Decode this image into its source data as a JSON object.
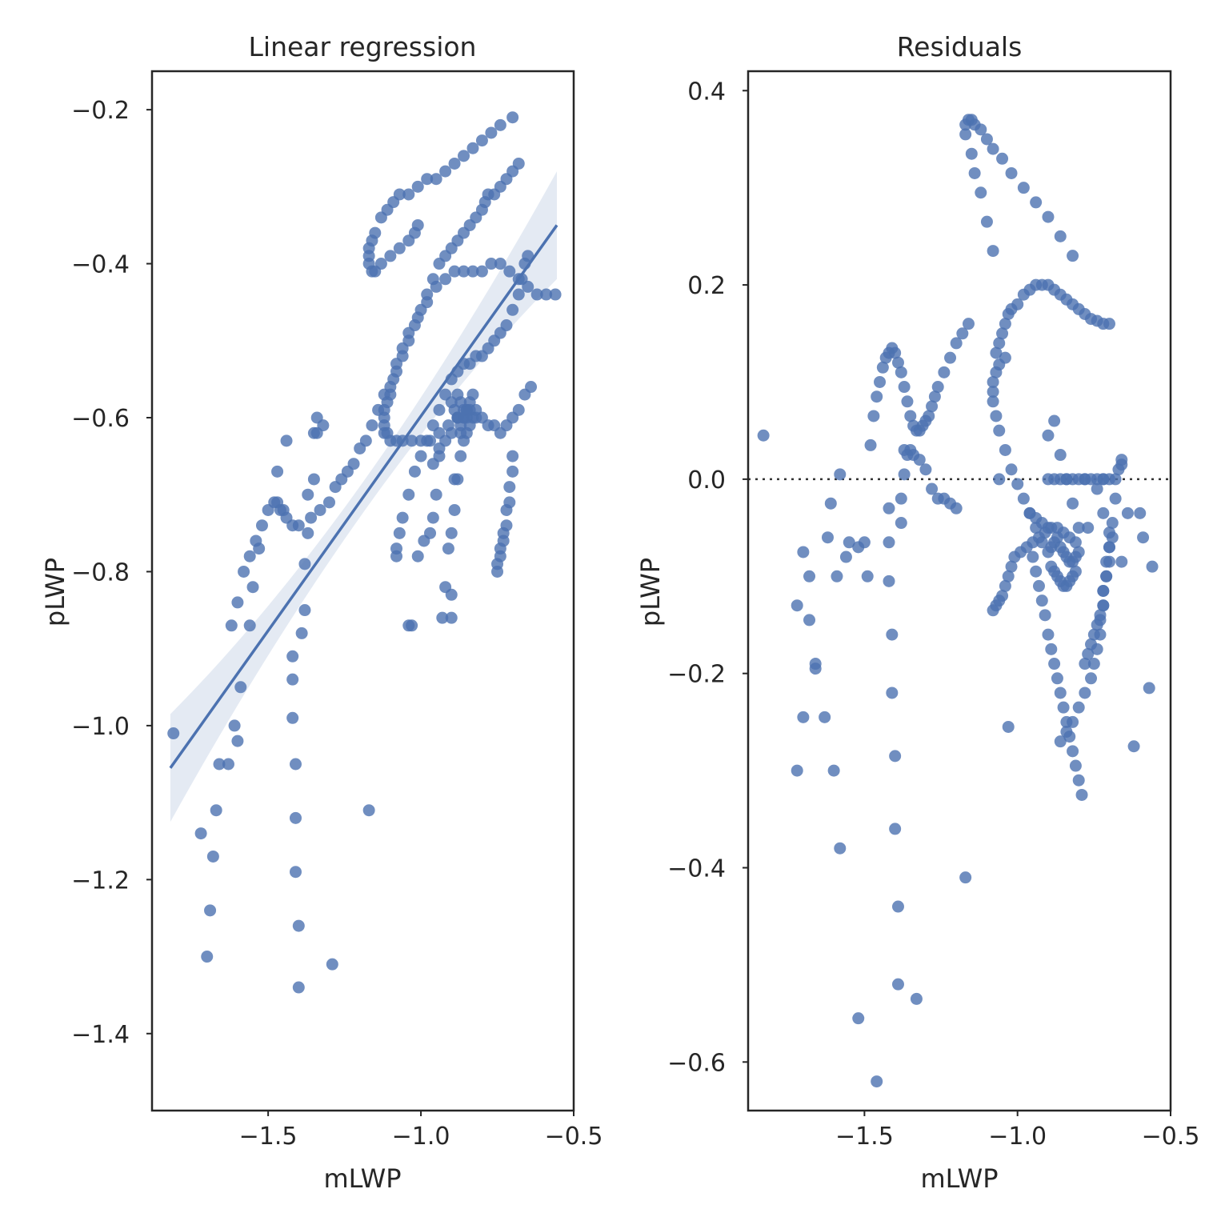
{
  "figure": {
    "left": {
      "title": "Linear regression",
      "xlabel": "mLWP",
      "ylabel": "pLWP"
    },
    "right": {
      "title": "Residuals",
      "xlabel": "mLWP",
      "ylabel": "pLWP"
    }
  },
  "colors": {
    "points": "#4c72b0",
    "fit_line": "#4c72b0",
    "zero_line": "#333333",
    "axes": "#262626"
  },
  "chart_data": [
    {
      "type": "scatter",
      "title": "Linear regression",
      "xlabel": "mLWP",
      "ylabel": "pLWP",
      "xlim": [
        -1.88,
        -0.5
      ],
      "ylim": [
        -1.5,
        -0.15
      ],
      "xticks": [
        -1.5,
        -1.0,
        -0.5
      ],
      "xtick_labels": [
        "−1.5",
        "−1.0",
        "−0.5"
      ],
      "yticks": [
        -1.4,
        -1.2,
        -1.0,
        -0.8,
        -0.6,
        -0.4,
        -0.2
      ],
      "ytick_labels": [
        "−1.4",
        "−1.2",
        "−1.0",
        "−0.8",
        "−0.6",
        "−0.4",
        "−0.2"
      ],
      "grid": false,
      "regression": {
        "x0": -1.82,
        "y0": -1.055,
        "x1": -0.555,
        "y1": -0.35,
        "ci_halfwidth_ends": 0.07,
        "ci_halfwidth_mid": 0.02
      },
      "x": [
        -0.7,
        -0.74,
        -0.77,
        -0.8,
        -0.83,
        -0.86,
        -0.89,
        -0.92,
        -0.95,
        -0.98,
        -1.01,
        -1.04,
        -1.07,
        -1.09,
        -1.11,
        -1.13,
        -1.15,
        -1.16,
        -1.17,
        -1.17,
        -1.17,
        -1.16,
        -1.15,
        -1.13,
        -1.1,
        -1.07,
        -1.04,
        -1.02,
        -1.01,
        -0.68,
        -0.7,
        -0.72,
        -0.74,
        -0.76,
        -0.78,
        -0.79,
        -0.8,
        -0.82,
        -0.84,
        -0.86,
        -0.88,
        -0.9,
        -0.92,
        -0.94,
        -0.96,
        -0.98,
        -1.0,
        -1.02,
        -1.04,
        -1.06,
        -1.08,
        -1.1,
        -1.12,
        -1.14,
        -1.16,
        -1.18,
        -1.2,
        -1.22,
        -1.24,
        -1.26,
        -1.28,
        -1.3,
        -1.33,
        -1.36,
        -1.4,
        -1.42,
        -1.44,
        -1.45,
        -1.46,
        -1.47,
        -1.48,
        -1.5,
        -1.52,
        -1.54,
        -1.56,
        -1.58,
        -1.6,
        -1.62,
        -0.56,
        -0.59,
        -0.62,
        -0.65,
        -0.68,
        -0.71,
        -0.74,
        -0.77,
        -0.8,
        -0.83,
        -0.86,
        -0.89,
        -0.92,
        -0.95,
        -0.98,
        -1.01,
        -1.04,
        -1.06,
        -1.08,
        -1.09,
        -1.1,
        -1.11,
        -1.12,
        -1.12,
        -1.12,
        -1.12,
        -1.11,
        -1.1,
        -1.08,
        -1.06,
        -1.03,
        -1.0,
        -0.97,
        -0.94,
        -0.91,
        -0.88,
        -0.85,
        -0.65,
        -0.66,
        -0.67,
        -0.68,
        -0.7,
        -0.72,
        -0.74,
        -0.76,
        -0.78,
        -0.8,
        -0.82,
        -0.84,
        -0.86,
        -0.88,
        -0.9,
        -0.92,
        -0.94,
        -0.96,
        -0.98,
        -1.0,
        -1.02,
        -1.04,
        -1.06,
        -1.07,
        -1.08,
        -1.08,
        -0.83,
        -0.84,
        -0.85,
        -0.86,
        -0.87,
        -0.88,
        -0.89,
        -0.9,
        -0.85,
        -0.86,
        -0.87,
        -0.88,
        -0.84,
        -0.83,
        -0.82,
        -0.85,
        -0.86,
        -0.64,
        -0.66,
        -0.68,
        -0.7,
        -0.72,
        -0.74,
        -0.76,
        -0.78,
        -0.8,
        -0.82,
        -0.84,
        -0.86,
        -0.88,
        -0.9,
        -0.92,
        -0.94,
        -0.96,
        -0.7,
        -0.7,
        -0.71,
        -0.71,
        -0.72,
        -0.72,
        -0.73,
        -0.73,
        -0.74,
        -0.74,
        -0.75,
        -0.75,
        -0.87,
        -0.88,
        -0.89,
        -0.9,
        -0.91,
        -0.92,
        -0.93,
        -0.94,
        -0.95,
        -0.96,
        -0.97,
        -0.99,
        -1.01,
        -1.04,
        -1.81,
        -1.72,
        -1.7,
        -1.69,
        -1.67,
        -1.68,
        -1.66,
        -1.63,
        -1.61,
        -1.6,
        -1.59,
        -1.56,
        -1.55,
        -1.53,
        -1.47,
        -1.44,
        -1.42,
        -1.42,
        -1.42,
        -1.41,
        -1.41,
        -1.41,
        -1.4,
        -1.4,
        -1.39,
        -1.38,
        -1.38,
        -1.37,
        -1.37,
        -1.35,
        -1.35,
        -1.34,
        -1.34,
        -1.32,
        -1.29,
        -1.17,
        -1.03,
        -0.9,
        -0.9,
        -0.89,
        -0.87
      ],
      "y": [
        -0.21,
        -0.22,
        -0.23,
        -0.24,
        -0.25,
        -0.26,
        -0.27,
        -0.28,
        -0.29,
        -0.29,
        -0.3,
        -0.31,
        -0.31,
        -0.32,
        -0.33,
        -0.34,
        -0.36,
        -0.37,
        -0.38,
        -0.39,
        -0.4,
        -0.41,
        -0.41,
        -0.4,
        -0.39,
        -0.38,
        -0.37,
        -0.36,
        -0.35,
        -0.27,
        -0.28,
        -0.29,
        -0.3,
        -0.31,
        -0.31,
        -0.32,
        -0.33,
        -0.34,
        -0.35,
        -0.36,
        -0.37,
        -0.38,
        -0.39,
        -0.4,
        -0.42,
        -0.44,
        -0.46,
        -0.48,
        -0.5,
        -0.52,
        -0.54,
        -0.56,
        -0.57,
        -0.59,
        -0.61,
        -0.63,
        -0.64,
        -0.66,
        -0.67,
        -0.68,
        -0.69,
        -0.71,
        -0.72,
        -0.73,
        -0.74,
        -0.74,
        -0.73,
        -0.72,
        -0.72,
        -0.71,
        -0.71,
        -0.72,
        -0.74,
        -0.76,
        -0.78,
        -0.8,
        -0.84,
        -0.87,
        -0.44,
        -0.44,
        -0.44,
        -0.43,
        -0.42,
        -0.41,
        -0.4,
        -0.4,
        -0.41,
        -0.41,
        -0.41,
        -0.41,
        -0.42,
        -0.43,
        -0.45,
        -0.47,
        -0.49,
        -0.51,
        -0.53,
        -0.55,
        -0.57,
        -0.58,
        -0.59,
        -0.6,
        -0.61,
        -0.62,
        -0.62,
        -0.63,
        -0.63,
        -0.63,
        -0.63,
        -0.63,
        -0.63,
        -0.62,
        -0.61,
        -0.6,
        -0.59,
        -0.39,
        -0.4,
        -0.42,
        -0.44,
        -0.46,
        -0.48,
        -0.49,
        -0.5,
        -0.51,
        -0.52,
        -0.52,
        -0.53,
        -0.53,
        -0.54,
        -0.55,
        -0.57,
        -0.59,
        -0.61,
        -0.63,
        -0.65,
        -0.67,
        -0.7,
        -0.73,
        -0.75,
        -0.77,
        -0.78,
        -0.57,
        -0.58,
        -0.59,
        -0.6,
        -0.61,
        -0.6,
        -0.59,
        -0.58,
        -0.6,
        -0.59,
        -0.58,
        -0.57,
        -0.61,
        -0.6,
        -0.59,
        -0.62,
        -0.63,
        -0.56,
        -0.57,
        -0.59,
        -0.6,
        -0.61,
        -0.62,
        -0.61,
        -0.61,
        -0.6,
        -0.6,
        -0.59,
        -0.6,
        -0.6,
        -0.62,
        -0.63,
        -0.64,
        -0.66,
        -0.65,
        -0.67,
        -0.69,
        -0.71,
        -0.72,
        -0.74,
        -0.75,
        -0.76,
        -0.77,
        -0.78,
        -0.79,
        -0.8,
        -0.65,
        -0.68,
        -0.72,
        -0.75,
        -0.77,
        -0.82,
        -0.86,
        -0.65,
        -0.7,
        -0.73,
        -0.75,
        -0.76,
        -0.78,
        -0.87,
        -1.01,
        -1.14,
        -1.3,
        -1.24,
        -1.11,
        -1.17,
        -1.05,
        -1.05,
        -1.0,
        -1.02,
        -0.95,
        -0.87,
        -0.82,
        -0.77,
        -0.67,
        -0.63,
        -0.91,
        -0.94,
        -0.99,
        -1.05,
        -1.12,
        -1.19,
        -1.26,
        -1.34,
        -0.88,
        -0.85,
        -0.79,
        -0.75,
        -0.7,
        -0.68,
        -0.62,
        -0.62,
        -0.6,
        -0.61,
        -1.31,
        -1.11,
        -0.87,
        -0.86,
        -0.83,
        -0.68,
        -0.62
      ]
    },
    {
      "type": "scatter",
      "title": "Residuals",
      "xlabel": "mLWP",
      "ylabel": "pLWP",
      "xlim": [
        -1.88,
        -0.5
      ],
      "ylim": [
        -0.65,
        0.42
      ],
      "xticks": [
        -1.5,
        -1.0,
        -0.5
      ],
      "xtick_labels": [
        "−1.5",
        "−1.0",
        "−0.5"
      ],
      "yticks": [
        -0.6,
        -0.4,
        -0.2,
        0.0,
        0.2,
        0.4
      ],
      "ytick_labels": [
        "−0.6",
        "−0.4",
        "−0.2",
        "0.0",
        "0.2",
        "0.4"
      ],
      "grid": false,
      "reference_line_y": 0.0,
      "x": [
        -1.17,
        -1.17,
        -1.16,
        -1.15,
        -1.14,
        -1.12,
        -1.1,
        -1.08,
        -1.05,
        -1.02,
        -0.98,
        -0.94,
        -0.9,
        -0.86,
        -0.82,
        -0.78,
        -0.72,
        -1.15,
        -1.14,
        -1.12,
        -1.1,
        -1.08,
        -1.06,
        -1.07,
        -1.06,
        -1.05,
        -1.04,
        -1.03,
        -1.02,
        -1.0,
        -0.98,
        -0.96,
        -0.94,
        -0.92,
        -0.9,
        -0.88,
        -0.86,
        -0.84,
        -0.82,
        -0.8,
        -0.78,
        -0.76,
        -0.74,
        -0.72,
        -0.7,
        -0.68,
        -1.04,
        -1.06,
        -1.07,
        -1.08,
        -1.08,
        -1.08,
        -1.07,
        -1.06,
        -1.04,
        -1.02,
        -1.0,
        -0.98,
        -0.96,
        -0.94,
        -0.92,
        -0.9,
        -0.88,
        -0.86,
        -0.84,
        -0.82,
        -0.8,
        -0.78,
        -0.76,
        -0.74,
        -0.72,
        -0.7,
        -1.08,
        -1.07,
        -1.06,
        -1.05,
        -1.04,
        -1.03,
        -1.02,
        -1.01,
        -0.99,
        -0.97,
        -0.95,
        -0.93,
        -0.91,
        -0.89,
        -0.87,
        -0.85,
        -0.83,
        -0.81,
        -0.9,
        -0.89,
        -0.88,
        -0.87,
        -0.86,
        -0.85,
        -0.84,
        -0.83,
        -0.82,
        -0.81,
        -0.8,
        -0.89,
        -0.88,
        -0.87,
        -0.86,
        -0.85,
        -0.84,
        -0.83,
        -0.82,
        -0.81,
        -0.9,
        -0.92,
        -0.94,
        -0.96,
        -0.66,
        -0.66,
        -0.67,
        -0.68,
        -0.69,
        -0.7,
        -0.7,
        -0.71,
        -0.72,
        -0.72,
        -0.73,
        -0.74,
        -0.75,
        -0.76,
        -0.77,
        -0.78,
        -0.7,
        -0.7,
        -0.71,
        -0.71,
        -0.72,
        -0.72,
        -0.73,
        -0.73,
        -0.74,
        -0.75,
        -0.76,
        -0.78,
        -0.8,
        -0.82,
        -0.84,
        -0.86,
        -0.95,
        -0.94,
        -0.93,
        -0.92,
        -0.91,
        -0.9,
        -0.89,
        -0.88,
        -0.87,
        -0.86,
        -0.85,
        -0.84,
        -0.83,
        -0.82,
        -0.81,
        -0.8,
        -0.79,
        -1.83,
        -1.72,
        -1.7,
        -1.68,
        -1.68,
        -1.66,
        -1.63,
        -1.6,
        -1.58,
        -1.56,
        -1.55,
        -1.52,
        -1.5,
        -1.48,
        -1.47,
        -1.46,
        -1.45,
        -1.44,
        -1.43,
        -1.42,
        -1.41,
        -1.4,
        -1.39,
        -1.38,
        -1.37,
        -1.36,
        -1.35,
        -1.34,
        -1.33,
        -1.32,
        -1.31,
        -1.3,
        -1.29,
        -1.28,
        -1.27,
        -1.26,
        -1.24,
        -1.22,
        -1.2,
        -1.18,
        -1.16,
        -1.42,
        -1.42,
        -1.42,
        -1.41,
        -1.41,
        -1.4,
        -1.4,
        -1.39,
        -1.39,
        -1.38,
        -1.38,
        -1.37,
        -1.37,
        -1.36,
        -1.35,
        -1.34,
        -1.32,
        -1.3,
        -1.28,
        -1.26,
        -1.24,
        -1.22,
        -1.2,
        -1.72,
        -1.7,
        -1.66,
        -1.62,
        -1.61,
        -1.59,
        -1.58,
        -1.52,
        -1.49,
        -1.46,
        -1.33,
        -1.17,
        -1.03,
        -0.9,
        -0.88,
        -0.86,
        -0.84,
        -0.82,
        -0.8,
        -0.77,
        -0.74,
        -0.72,
        -0.69,
        -0.66,
        -0.64,
        -0.6,
        -0.56,
        -0.57,
        -0.59,
        -0.62
      ],
      "y": [
        0.355,
        0.365,
        0.37,
        0.37,
        0.365,
        0.36,
        0.35,
        0.34,
        0.33,
        0.315,
        0.3,
        0.285,
        0.27,
        0.25,
        0.23,
        0.0,
        0.0,
        0.335,
        0.315,
        0.295,
        0.265,
        0.235,
        0.0,
        0.13,
        0.14,
        0.15,
        0.16,
        0.17,
        0.175,
        0.18,
        0.19,
        0.195,
        0.2,
        0.2,
        0.2,
        0.195,
        0.19,
        0.185,
        0.18,
        0.175,
        0.17,
        0.165,
        0.163,
        0.16,
        0.16,
        0.0,
        0.125,
        0.118,
        0.11,
        0.1,
        0.09,
        0.08,
        0.065,
        0.05,
        0.03,
        0.01,
        -0.005,
        -0.02,
        -0.035,
        -0.05,
        -0.065,
        0.0,
        0.0,
        0.0,
        0.0,
        0.0,
        0.0,
        0.0,
        0.0,
        0.0,
        0.0,
        0.0,
        -0.135,
        -0.13,
        -0.125,
        -0.12,
        -0.11,
        -0.1,
        -0.09,
        -0.08,
        -0.075,
        -0.07,
        -0.065,
        -0.06,
        -0.055,
        -0.05,
        -0.05,
        -0.055,
        -0.06,
        -0.065,
        -0.075,
        -0.07,
        -0.065,
        -0.06,
        -0.07,
        -0.075,
        -0.08,
        -0.085,
        -0.085,
        -0.08,
        -0.075,
        -0.09,
        -0.095,
        -0.1,
        -0.105,
        -0.11,
        -0.11,
        -0.105,
        -0.1,
        -0.095,
        -0.05,
        -0.045,
        -0.04,
        -0.035,
        0.02,
        0.015,
        0.01,
        -0.02,
        -0.045,
        -0.07,
        -0.085,
        -0.1,
        -0.115,
        -0.13,
        -0.14,
        -0.15,
        -0.16,
        -0.17,
        -0.18,
        -0.19,
        -0.055,
        -0.07,
        -0.085,
        -0.1,
        -0.115,
        -0.13,
        -0.145,
        -0.16,
        -0.175,
        -0.19,
        -0.205,
        -0.22,
        -0.235,
        -0.25,
        -0.26,
        -0.27,
        -0.08,
        -0.095,
        -0.11,
        -0.125,
        -0.14,
        -0.16,
        -0.175,
        -0.19,
        -0.205,
        -0.22,
        -0.235,
        -0.25,
        -0.265,
        -0.28,
        -0.295,
        -0.31,
        -0.325,
        0.045,
        -0.13,
        -0.075,
        -0.1,
        -0.145,
        -0.195,
        -0.245,
        -0.3,
        -0.38,
        -0.08,
        -0.065,
        -0.07,
        -0.065,
        0.035,
        0.065,
        0.085,
        0.1,
        0.115,
        0.125,
        0.13,
        0.135,
        0.13,
        0.12,
        0.11,
        0.095,
        0.08,
        0.065,
        0.055,
        0.05,
        0.05,
        0.055,
        0.06,
        0.065,
        0.075,
        0.085,
        0.095,
        0.11,
        0.125,
        0.14,
        0.15,
        0.16,
        -0.03,
        -0.065,
        -0.105,
        -0.16,
        -0.22,
        -0.285,
        -0.36,
        -0.44,
        -0.52,
        -0.045,
        -0.02,
        0.005,
        0.03,
        0.025,
        0.03,
        0.025,
        0.02,
        0.01,
        -0.01,
        -0.02,
        -0.02,
        -0.025,
        -0.03,
        -0.3,
        -0.245,
        -0.19,
        -0.06,
        -0.025,
        -0.1,
        0.005,
        -0.555,
        -0.1,
        -0.62,
        -0.535,
        -0.41,
        -0.255,
        0.045,
        0.06,
        0.025,
        0.0,
        -0.025,
        -0.05,
        -0.05,
        -0.01,
        -0.035,
        -0.06,
        -0.085,
        -0.035,
        -0.035,
        -0.09,
        -0.215,
        -0.06,
        -0.275
      ]
    }
  ]
}
